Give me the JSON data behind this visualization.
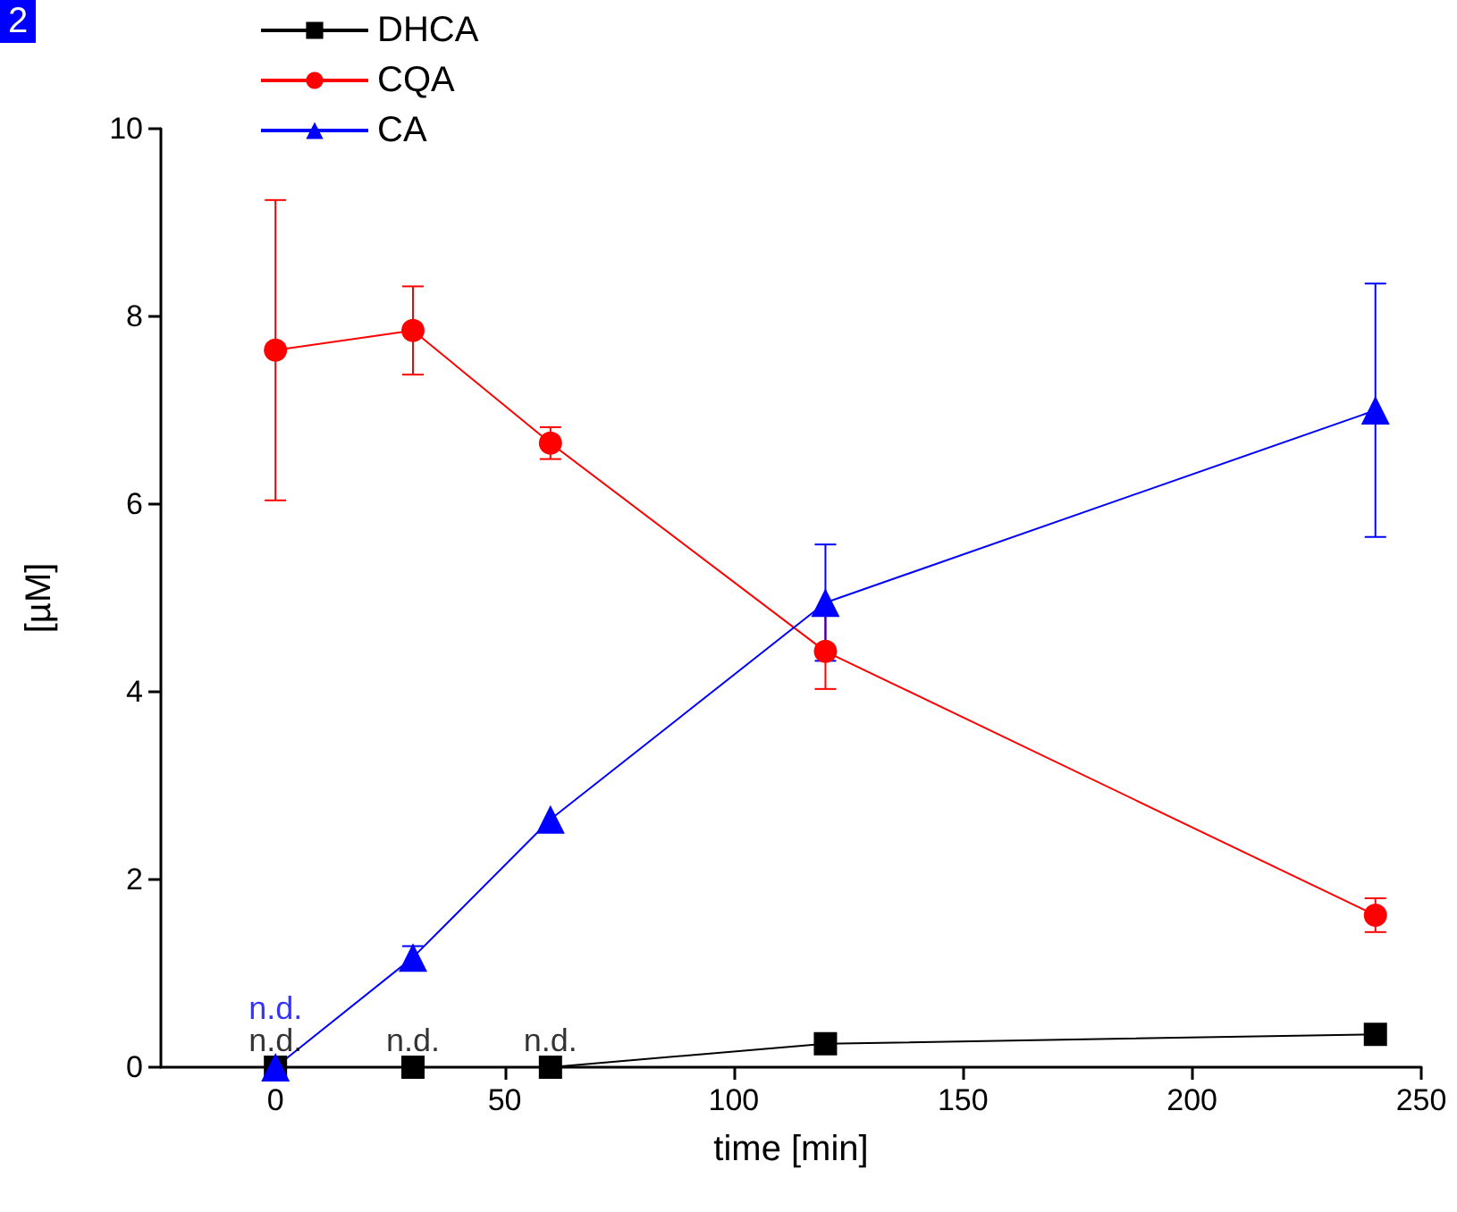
{
  "chart_data": {
    "type": "line",
    "xlabel": "time [min]",
    "ylabel": "[µM]",
    "x": [
      0,
      30,
      60,
      120,
      240
    ],
    "xlim": [
      -25,
      250
    ],
    "xticks": [
      0,
      50,
      100,
      150,
      200,
      250
    ],
    "ylim": [
      0,
      10
    ],
    "yticks": [
      0,
      2,
      4,
      6,
      8,
      10
    ],
    "grid": false,
    "legend": "top left",
    "line_style": "solid",
    "series": [
      {
        "name": "DHCA",
        "color": "#000000",
        "marker": "square",
        "values": [
          0,
          0,
          0,
          0.25,
          0.35
        ]
      },
      {
        "name": "CQA",
        "color": "#ff0000",
        "marker": "circle",
        "values": [
          7.64,
          7.85,
          6.65,
          4.43,
          1.62
        ],
        "errors": [
          1.6,
          0.47,
          0.17,
          0.4,
          0.18
        ]
      },
      {
        "name": "CA",
        "color": "#0000ff",
        "marker": "triangle",
        "values": [
          0,
          1.17,
          2.64,
          4.95,
          7.0
        ],
        "errors": [
          null,
          0.12,
          null,
          0.62,
          1.35
        ]
      }
    ],
    "annotations": [
      "2",
      {
        "text": "n.d.",
        "x": 0,
        "y": 0
      },
      {
        "text": "n.d.",
        "x": 0,
        "y": 0
      },
      {
        "text": "n.d.",
        "x": 30,
        "y": 0
      },
      {
        "text": "n.d.",
        "x": 60,
        "y": 0
      }
    ]
  }
}
